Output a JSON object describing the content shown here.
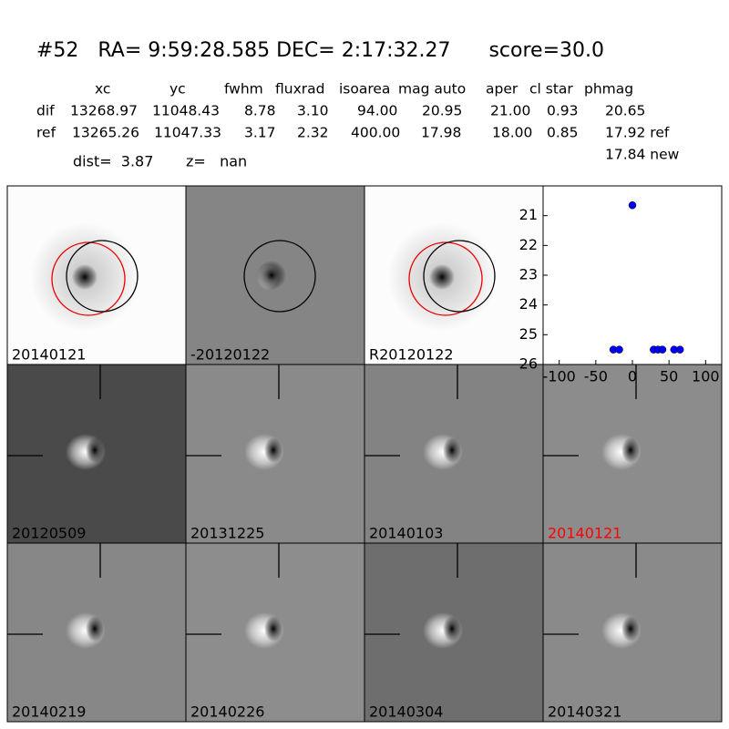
{
  "header": {
    "title": "#52   RA= 9:59:28.585 DEC= 2:17:32.27      score=30.0",
    "dist": "dist=  3.87       z=   nan"
  },
  "table": {
    "columns": [
      "xc",
      "yc",
      "fwhm",
      "fluxrad",
      "isoarea",
      "mag auto",
      "aper",
      "cl star",
      "phmag"
    ],
    "rows": [
      [
        "dif",
        "13268.97",
        "11048.43",
        "8.78",
        "3.10",
        "94.00",
        "20.95",
        "21.00",
        "0.93",
        "20.65"
      ],
      [
        "ref",
        "13265.26",
        "11047.33",
        "3.17",
        "2.32",
        "400.00",
        "17.98",
        "18.00",
        "0.85",
        "17.92 ref"
      ]
    ],
    "extra": "17.84 new"
  },
  "stamps": [
    {
      "label": "20140121",
      "color": "#000000"
    },
    {
      "label": "-20120122",
      "color": "#000000"
    },
    {
      "label": "R20120122",
      "color": "#000000"
    },
    {
      "label": "20120509",
      "color": "#000000"
    },
    {
      "label": "20131225",
      "color": "#000000"
    },
    {
      "label": "20140103",
      "color": "#000000"
    },
    {
      "label": "20140121",
      "color": "#ff0000"
    },
    {
      "label": "20140219",
      "color": "#000000"
    },
    {
      "label": "20140226",
      "color": "#000000"
    },
    {
      "label": "20140304",
      "color": "#000000"
    },
    {
      "label": "20140321",
      "color": "#000000"
    }
  ],
  "chart_data": {
    "type": "scatter",
    "x": [
      0,
      -26,
      -18,
      29,
      35,
      41,
      57,
      65
    ],
    "values": [
      20.65,
      25.5,
      25.5,
      25.5,
      25.5,
      25.5,
      25.5,
      25.5
    ],
    "color": "#0000ff",
    "xlim": [
      -122,
      122
    ],
    "ylim": [
      26,
      20
    ],
    "xticks": [
      -100,
      -50,
      0,
      50,
      100
    ],
    "yticks": [
      21,
      22,
      23,
      24,
      25,
      26
    ]
  }
}
